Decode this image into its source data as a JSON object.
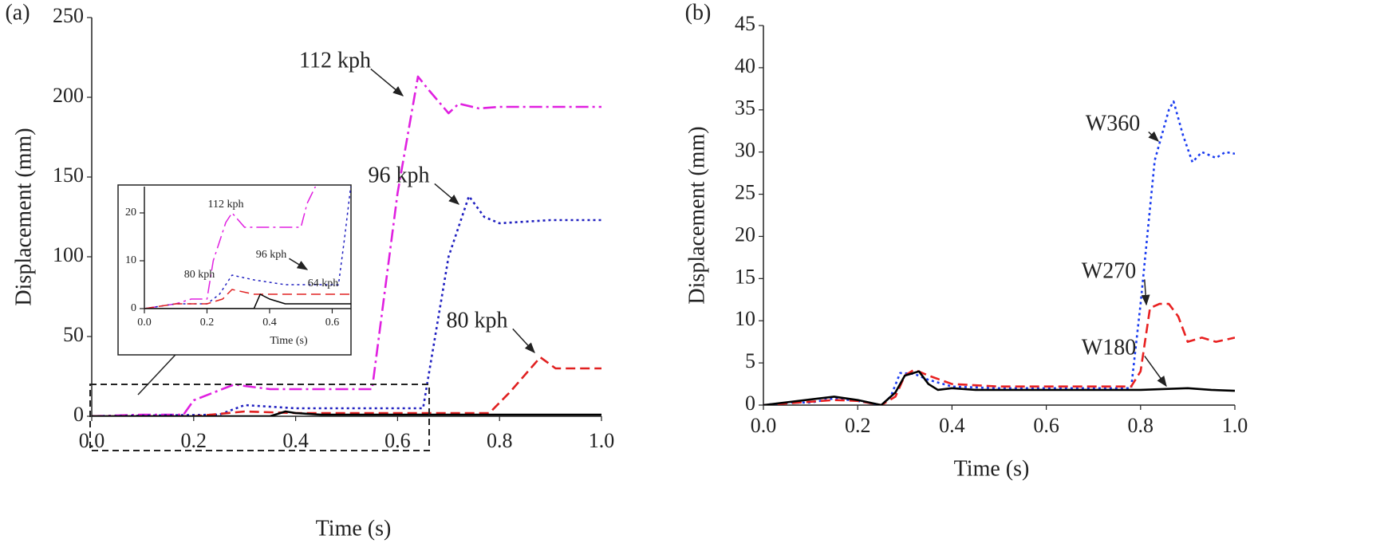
{
  "chart_data": [
    {
      "type": "line",
      "title": "(a)",
      "xlabel": "Time (s)",
      "ylabel": "Displacement (mm)",
      "xlim": [
        0,
        1
      ],
      "ylim": [
        0,
        250
      ],
      "xticks": [
        {
          "value": 0,
          "label": "0.0"
        },
        0.2,
        0.4,
        0.6,
        0.8,
        {
          "value": 1,
          "label": "1.0"
        }
      ],
      "yticks": [
        0,
        50,
        100,
        150,
        200,
        250
      ],
      "series": [
        {
          "name": "112 kph",
          "color": "#e020e0",
          "style": "dashdot",
          "x": [
            0,
            0.1,
            0.18,
            0.2,
            0.28,
            0.3,
            0.35,
            0.45,
            0.55,
            0.6,
            0.64,
            0.66,
            0.7,
            0.72,
            0.76,
            0.8,
            1.0
          ],
          "values": [
            0,
            1,
            1,
            10,
            20,
            19,
            17,
            17,
            17,
            140,
            213,
            205,
            190,
            196,
            193,
            194,
            194
          ]
        },
        {
          "name": "96 kph",
          "color": "#2020c0",
          "style": "dotted",
          "x": [
            0,
            0.25,
            0.3,
            0.4,
            0.5,
            0.65,
            0.7,
            0.74,
            0.77,
            0.8,
            0.9,
            1.0
          ],
          "values": [
            0,
            1,
            7,
            5,
            5,
            5,
            100,
            138,
            125,
            121,
            123,
            123
          ]
        },
        {
          "name": "80 kph",
          "color": "#e02020",
          "style": "dashed",
          "x": [
            0,
            0.2,
            0.3,
            0.4,
            0.5,
            0.6,
            0.78,
            0.82,
            0.88,
            0.91,
            0.95,
            1.0
          ],
          "values": [
            0,
            0,
            3,
            2,
            2,
            2,
            2,
            15,
            37,
            30,
            30,
            30
          ]
        },
        {
          "color": "#000000",
          "style": "solid",
          "x": [
            0,
            0.35,
            0.38,
            0.4,
            0.45,
            0.6,
            0.8,
            1.0
          ],
          "values": [
            0,
            0,
            3,
            2,
            1,
            1,
            1,
            1
          ]
        }
      ]
    },
    {
      "type": "line",
      "xlabel": "Time (s)",
      "xlim": [
        0,
        0.66
      ],
      "ylim": [
        0,
        25.5
      ],
      "xticks": [
        {
          "value": 0,
          "label": "0.0"
        },
        0.2,
        0.4,
        0.6
      ],
      "yticks": [
        0,
        10,
        20
      ],
      "series": [
        {
          "name": "112 kph",
          "color": "#e020e0",
          "style": "dashdot",
          "x": [
            0,
            0.1,
            0.15,
            0.2,
            0.22,
            0.26,
            0.28,
            0.32,
            0.4,
            0.5,
            0.52,
            0.55
          ],
          "values": [
            0,
            1,
            2,
            2,
            10,
            18,
            20,
            17,
            17,
            17,
            22,
            26
          ]
        },
        {
          "name": "96 kph",
          "color": "#2020c0",
          "style": "dotted",
          "x": [
            0,
            0.1,
            0.2,
            0.24,
            0.28,
            0.35,
            0.45,
            0.55,
            0.62,
            0.64,
            0.66
          ],
          "values": [
            0,
            1,
            1,
            3,
            7,
            6,
            5,
            5,
            5,
            15,
            26
          ]
        },
        {
          "name": "80 kph",
          "color": "#e02020",
          "style": "dashed",
          "x": [
            0,
            0.1,
            0.2,
            0.25,
            0.28,
            0.35,
            0.5,
            0.66
          ],
          "values": [
            0,
            1,
            1,
            2,
            4,
            3,
            3,
            3
          ]
        },
        {
          "name": "64 kph",
          "color": "#000000",
          "style": "solid",
          "x": [
            0,
            0.35,
            0.37,
            0.4,
            0.45,
            0.5,
            0.66
          ],
          "values": [
            0,
            0,
            3,
            2,
            1,
            1,
            1
          ]
        }
      ]
    },
    {
      "type": "line",
      "title": "(b)",
      "xlabel": "Time (s)",
      "ylabel": "Displacement (mm)",
      "xlim": [
        0,
        1
      ],
      "ylim": [
        0,
        45
      ],
      "xticks": [
        {
          "value": 0,
          "label": "0.0"
        },
        0.2,
        0.4,
        0.6,
        0.8,
        {
          "value": 1,
          "label": "1.0"
        }
      ],
      "yticks": [
        0,
        5,
        10,
        15,
        20,
        25,
        30,
        35,
        40,
        45
      ],
      "series": [
        {
          "name": "W360",
          "color": "#1a3cf0",
          "style": "dotted",
          "x": [
            0,
            0.05,
            0.1,
            0.15,
            0.2,
            0.25,
            0.27,
            0.29,
            0.32,
            0.35,
            0.4,
            0.5,
            0.6,
            0.7,
            0.78,
            0.8,
            0.83,
            0.86,
            0.87,
            0.89,
            0.91,
            0.93,
            0.96,
            0.98,
            1.0
          ],
          "values": [
            0,
            0.3,
            0.3,
            0.8,
            0.5,
            0,
            1,
            3.8,
            3.7,
            3,
            2.2,
            2,
            2,
            2,
            2,
            12,
            29,
            35,
            36,
            32,
            28.8,
            30,
            29.3,
            30,
            29.8
          ]
        },
        {
          "name": "W270",
          "color": "#e82020",
          "style": "dashed",
          "x": [
            0,
            0.15,
            0.2,
            0.25,
            0.28,
            0.3,
            0.32,
            0.35,
            0.4,
            0.5,
            0.6,
            0.7,
            0.78,
            0.8,
            0.82,
            0.84,
            0.86,
            0.88,
            0.9,
            0.93,
            0.96,
            1.0
          ],
          "values": [
            0,
            0.6,
            0.5,
            0,
            1,
            3.5,
            4.2,
            3.5,
            2.5,
            2.2,
            2.2,
            2.2,
            2.2,
            4,
            11.5,
            12,
            12,
            10.5,
            7.5,
            8,
            7.5,
            8
          ]
        },
        {
          "name": "W180",
          "color": "#000000",
          "style": "solid",
          "x": [
            0,
            0.15,
            0.2,
            0.25,
            0.28,
            0.3,
            0.33,
            0.35,
            0.37,
            0.4,
            0.45,
            0.6,
            0.8,
            0.9,
            0.95,
            1.0
          ],
          "values": [
            0,
            1,
            0.6,
            0,
            1.5,
            3.5,
            4,
            2.5,
            1.8,
            2,
            1.8,
            1.8,
            1.8,
            2,
            1.8,
            1.7
          ]
        }
      ]
    }
  ]
}
